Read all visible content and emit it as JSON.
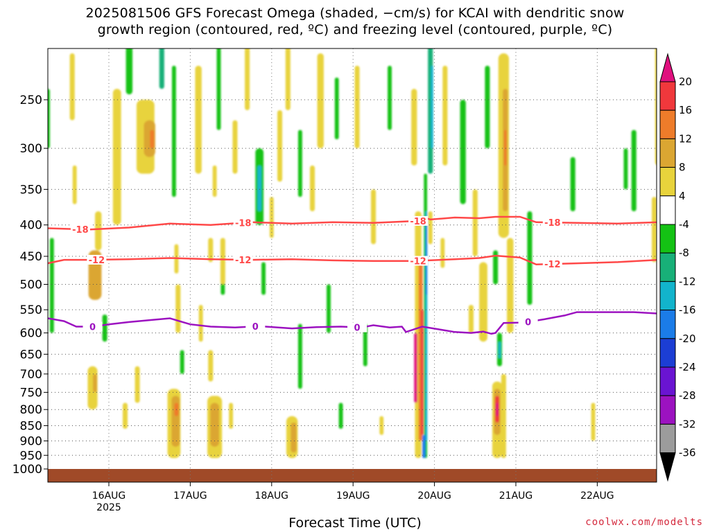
{
  "title_line1": "2025081506 GFS Forecast Omega (shaded, −cm/s) for KCAI with dendritic snow",
  "title_line2": "growth region (contoured, red, ºC) and freezing level (contoured, purple, ºC)",
  "credit": "coolwx.com/modelts",
  "chart_data": {
    "type": "heatmap",
    "title": "2025081506 GFS Forecast Omega (shaded, −cm/s) for KCAI with dendritic snow growth region (contoured, red, ºC) and freezing level (contoured, purple, ºC)",
    "xlabel": "Forecast Time (UTC)",
    "ylabel": "",
    "x_ticks": [
      "16AUG",
      "17AUG",
      "18AUG",
      "19AUG",
      "20AUG",
      "21AUG",
      "22AUG"
    ],
    "x_tick_year": "2025",
    "xlim": [
      "2025-08-15 06Z",
      "2025-08-22 18Z"
    ],
    "y_ticks": [
      250,
      300,
      350,
      400,
      450,
      500,
      550,
      600,
      650,
      700,
      750,
      800,
      850,
      900,
      950,
      1000
    ],
    "ylim": [
      1050,
      200
    ],
    "y_scale": "log-pressure",
    "grid": true,
    "colorbar": {
      "ticks": [
        20,
        16,
        12,
        8,
        4,
        -4,
        -8,
        -12,
        -16,
        -20,
        -24,
        -28,
        -32,
        -36
      ],
      "bins": [
        {
          "range": [
            20,
            null
          ],
          "color": "#e0107e"
        },
        {
          "range": [
            16,
            20
          ],
          "color": "#f0383c"
        },
        {
          "range": [
            12,
            16
          ],
          "color": "#ee7c2a"
        },
        {
          "range": [
            8,
            12
          ],
          "color": "#dba632"
        },
        {
          "range": [
            4,
            8
          ],
          "color": "#e8d33c"
        },
        {
          "range": [
            -4,
            4
          ],
          "color": "#ffffff"
        },
        {
          "range": [
            -8,
            -4
          ],
          "color": "#14c214"
        },
        {
          "range": [
            -12,
            -8
          ],
          "color": "#18b078"
        },
        {
          "range": [
            -16,
            -12
          ],
          "color": "#12b4cc"
        },
        {
          "range": [
            -20,
            -16
          ],
          "color": "#1b7ce8"
        },
        {
          "range": [
            -24,
            -20
          ],
          "color": "#1c3ed4"
        },
        {
          "range": [
            -28,
            -24
          ],
          "color": "#6a14d2"
        },
        {
          "range": [
            -32,
            -28
          ],
          "color": "#9c12c0"
        },
        {
          "range": [
            -36,
            -32
          ],
          "color": "#9c9c9c"
        },
        {
          "range": [
            null,
            -36
          ],
          "color": "#000000"
        }
      ]
    },
    "terrain_color": "#a04a28",
    "contours": [
      {
        "level": -18,
        "color": "#ff4848",
        "label_x_days": [
          0.4,
          2.4,
          4.55,
          6.2
        ],
        "points": [
          [
            0,
            405
          ],
          [
            0.5,
            407
          ],
          [
            1,
            404
          ],
          [
            1.5,
            398
          ],
          [
            2,
            400
          ],
          [
            2.5,
            396
          ],
          [
            3,
            398
          ],
          [
            3.5,
            396
          ],
          [
            4,
            397
          ],
          [
            4.55,
            394
          ],
          [
            4.6,
            388
          ],
          [
            4.7,
            392
          ],
          [
            5,
            389
          ],
          [
            5.3,
            390
          ],
          [
            5.5,
            388
          ],
          [
            5.8,
            388
          ],
          [
            6.0,
            396
          ],
          [
            6.5,
            397
          ],
          [
            7,
            398
          ],
          [
            7.5,
            396
          ],
          [
            7.8,
            396
          ]
        ]
      },
      {
        "level": -12,
        "color": "#ff4848",
        "label_x_days": [
          0.6,
          2.4,
          4.55,
          6.2
        ],
        "points": [
          [
            0,
            462
          ],
          [
            0.2,
            456
          ],
          [
            0.5,
            456
          ],
          [
            1,
            455
          ],
          [
            1.5,
            453
          ],
          [
            2,
            455
          ],
          [
            2.5,
            456
          ],
          [
            3,
            455
          ],
          [
            3.5,
            457
          ],
          [
            4,
            458
          ],
          [
            4.5,
            458
          ],
          [
            5,
            455
          ],
          [
            5.3,
            453
          ],
          [
            5.5,
            449
          ],
          [
            5.8,
            452
          ],
          [
            6.0,
            464
          ],
          [
            6.5,
            462
          ],
          [
            7,
            460
          ],
          [
            7.5,
            456
          ],
          [
            7.8,
            456
          ]
        ]
      },
      {
        "level": 0,
        "color": "#9c12c0",
        "label_x_days": [
          0.55,
          2.55,
          3.8,
          5.9
        ],
        "points": [
          [
            0,
            568
          ],
          [
            0.2,
            574
          ],
          [
            0.35,
            586
          ],
          [
            0.55,
            586
          ],
          [
            0.75,
            581
          ],
          [
            1,
            576
          ],
          [
            1.3,
            571
          ],
          [
            1.5,
            568
          ],
          [
            1.75,
            581
          ],
          [
            2,
            586
          ],
          [
            2.3,
            588
          ],
          [
            2.6,
            585
          ],
          [
            3,
            590
          ],
          [
            3.3,
            587
          ],
          [
            3.6,
            586
          ],
          [
            3.85,
            588
          ],
          [
            4.0,
            583
          ],
          [
            4.2,
            588
          ],
          [
            4.35,
            586
          ],
          [
            4.4,
            598
          ],
          [
            4.6,
            586
          ],
          [
            4.8,
            592
          ],
          [
            5,
            598
          ],
          [
            5.2,
            600
          ],
          [
            5.35,
            597
          ],
          [
            5.45,
            602
          ],
          [
            5.5,
            600
          ],
          [
            5.6,
            578
          ],
          [
            5.85,
            577
          ],
          [
            6.1,
            570
          ],
          [
            6.35,
            562
          ],
          [
            6.5,
            555
          ],
          [
            6.8,
            555
          ],
          [
            7.2,
            555
          ],
          [
            7.5,
            558
          ],
          [
            7.8,
            561
          ]
        ]
      }
    ],
    "omega_cells": [
      {
        "t": 0.0,
        "p1": 240,
        "p2": 300,
        "w": 0.05,
        "v": -6
      },
      {
        "t": 0.05,
        "p1": 420,
        "p2": 600,
        "w": 0.05,
        "v": -6
      },
      {
        "t": 0.3,
        "p1": 210,
        "p2": 270,
        "w": 0.06,
        "v": 6
      },
      {
        "t": 0.33,
        "p1": 320,
        "p2": 370,
        "w": 0.05,
        "v": 6
      },
      {
        "t": 0.58,
        "p1": 440,
        "p2": 530,
        "w": 0.16,
        "v": 10
      },
      {
        "t": 0.62,
        "p1": 380,
        "p2": 440,
        "w": 0.08,
        "v": 6
      },
      {
        "t": 0.7,
        "p1": 560,
        "p2": 620,
        "w": 0.06,
        "v": -6
      },
      {
        "t": 0.55,
        "p1": 680,
        "p2": 800,
        "w": 0.12,
        "v": 6
      },
      {
        "t": 0.58,
        "p1": 700,
        "p2": 750,
        "w": 0.05,
        "v": 10
      },
      {
        "t": 0.85,
        "p1": 240,
        "p2": 400,
        "w": 0.1,
        "v": 6
      },
      {
        "t": 0.95,
        "p1": 780,
        "p2": 860,
        "w": 0.06,
        "v": 6
      },
      {
        "t": 1.2,
        "p1": 250,
        "p2": 330,
        "w": 0.22,
        "v": 6
      },
      {
        "t": 1.25,
        "p1": 270,
        "p2": 310,
        "w": 0.14,
        "v": 10
      },
      {
        "t": 1.28,
        "p1": 280,
        "p2": 300,
        "w": 0.05,
        "v": 13
      },
      {
        "t": 1.0,
        "p1": 200,
        "p2": 245,
        "w": 0.08,
        "v": -6
      },
      {
        "t": 1.4,
        "p1": 200,
        "p2": 240,
        "w": 0.06,
        "v": -10
      },
      {
        "t": 1.1,
        "p1": 680,
        "p2": 780,
        "w": 0.06,
        "v": 6
      },
      {
        "t": 1.58,
        "p1": 430,
        "p2": 480,
        "w": 0.05,
        "v": 6
      },
      {
        "t": 1.6,
        "p1": 500,
        "p2": 600,
        "w": 0.06,
        "v": 6
      },
      {
        "t": 1.55,
        "p1": 740,
        "p2": 960,
        "w": 0.16,
        "v": 6
      },
      {
        "t": 1.57,
        "p1": 760,
        "p2": 920,
        "w": 0.1,
        "v": 10
      },
      {
        "t": 1.58,
        "p1": 780,
        "p2": 820,
        "w": 0.05,
        "v": 14
      },
      {
        "t": 1.65,
        "p1": 640,
        "p2": 700,
        "w": 0.05,
        "v": -6
      },
      {
        "t": 1.55,
        "p1": 220,
        "p2": 360,
        "w": 0.05,
        "v": -6
      },
      {
        "t": 1.85,
        "p1": 220,
        "p2": 330,
        "w": 0.08,
        "v": 6
      },
      {
        "t": 2.05,
        "p1": 320,
        "p2": 360,
        "w": 0.05,
        "v": 6
      },
      {
        "t": 2.0,
        "p1": 420,
        "p2": 460,
        "w": 0.06,
        "v": 6
      },
      {
        "t": 2.1,
        "p1": 200,
        "p2": 280,
        "w": 0.05,
        "v": -6
      },
      {
        "t": 2.3,
        "p1": 270,
        "p2": 330,
        "w": 0.06,
        "v": 6
      },
      {
        "t": 2.0,
        "p1": 640,
        "p2": 720,
        "w": 0.06,
        "v": 6
      },
      {
        "t": 1.88,
        "p1": 540,
        "p2": 620,
        "w": 0.05,
        "v": 6
      },
      {
        "t": 2.05,
        "p1": 760,
        "p2": 960,
        "w": 0.18,
        "v": 6
      },
      {
        "t": 2.05,
        "p1": 780,
        "p2": 920,
        "w": 0.11,
        "v": 10
      },
      {
        "t": 2.25,
        "p1": 780,
        "p2": 860,
        "w": 0.05,
        "v": 6
      },
      {
        "t": 2.15,
        "p1": 480,
        "p2": 520,
        "w": 0.05,
        "v": -6
      },
      {
        "t": 2.6,
        "p1": 300,
        "p2": 400,
        "w": 0.1,
        "v": -8
      },
      {
        "t": 2.6,
        "p1": 320,
        "p2": 380,
        "w": 0.05,
        "v": -13
      },
      {
        "t": 2.45,
        "p1": 200,
        "p2": 260,
        "w": 0.06,
        "v": 6
      },
      {
        "t": 2.15,
        "p1": 420,
        "p2": 500,
        "w": 0.06,
        "v": 6
      },
      {
        "t": 2.75,
        "p1": 360,
        "p2": 420,
        "w": 0.05,
        "v": 6
      },
      {
        "t": 2.85,
        "p1": 260,
        "p2": 340,
        "w": 0.06,
        "v": 6
      },
      {
        "t": 2.65,
        "p1": 460,
        "p2": 520,
        "w": 0.05,
        "v": -6
      },
      {
        "t": 2.95,
        "p1": 200,
        "p2": 260,
        "w": 0.06,
        "v": 6
      },
      {
        "t": 3.1,
        "p1": 280,
        "p2": 360,
        "w": 0.05,
        "v": -6
      },
      {
        "t": 3.25,
        "p1": 320,
        "p2": 380,
        "w": 0.06,
        "v": 6
      },
      {
        "t": 3.35,
        "p1": 210,
        "p2": 300,
        "w": 0.08,
        "v": 6
      },
      {
        "t": 3.55,
        "p1": 230,
        "p2": 290,
        "w": 0.05,
        "v": -6
      },
      {
        "t": 3.0,
        "p1": 820,
        "p2": 960,
        "w": 0.14,
        "v": 6
      },
      {
        "t": 3.02,
        "p1": 840,
        "p2": 940,
        "w": 0.07,
        "v": 10
      },
      {
        "t": 3.1,
        "p1": 580,
        "p2": 740,
        "w": 0.05,
        "v": -6
      },
      {
        "t": 3.45,
        "p1": 500,
        "p2": 600,
        "w": 0.05,
        "v": -6
      },
      {
        "t": 3.6,
        "p1": 780,
        "p2": 860,
        "w": 0.05,
        "v": -6
      },
      {
        "t": 3.8,
        "p1": 220,
        "p2": 300,
        "w": 0.06,
        "v": 6
      },
      {
        "t": 4.0,
        "p1": 350,
        "p2": 430,
        "w": 0.06,
        "v": 6
      },
      {
        "t": 4.2,
        "p1": 220,
        "p2": 280,
        "w": 0.05,
        "v": -6
      },
      {
        "t": 3.9,
        "p1": 580,
        "p2": 680,
        "w": 0.05,
        "v": -6
      },
      {
        "t": 4.1,
        "p1": 820,
        "p2": 880,
        "w": 0.05,
        "v": 6
      },
      {
        "t": 4.5,
        "p1": 240,
        "p2": 320,
        "w": 0.07,
        "v": 6
      },
      {
        "t": 4.55,
        "p1": 380,
        "p2": 960,
        "w": 0.08,
        "v": 6
      },
      {
        "t": 4.58,
        "p1": 450,
        "p2": 900,
        "w": 0.05,
        "v": 13
      },
      {
        "t": 4.6,
        "p1": 550,
        "p2": 880,
        "w": 0.03,
        "v": 18
      },
      {
        "t": 4.52,
        "p1": 600,
        "p2": 780,
        "w": 0.04,
        "v": 22
      },
      {
        "t": 4.64,
        "p1": 330,
        "p2": 960,
        "w": 0.04,
        "v": -8
      },
      {
        "t": 4.65,
        "p1": 380,
        "p2": 900,
        "w": 0.025,
        "v": -14
      },
      {
        "t": 4.65,
        "p1": 400,
        "p2": 520,
        "w": 0.02,
        "v": -18
      },
      {
        "t": 4.7,
        "p1": 200,
        "p2": 330,
        "w": 0.06,
        "v": -10
      },
      {
        "t": 4.72,
        "p1": 220,
        "p2": 300,
        "w": 0.03,
        "v": -14
      },
      {
        "t": 4.62,
        "p1": 880,
        "p2": 960,
        "w": 0.04,
        "v": -18
      },
      {
        "t": 4.7,
        "p1": 380,
        "p2": 430,
        "w": 0.05,
        "v": 6
      },
      {
        "t": 4.85,
        "p1": 420,
        "p2": 470,
        "w": 0.05,
        "v": 6
      },
      {
        "t": 4.88,
        "p1": 220,
        "p2": 320,
        "w": 0.06,
        "v": 6
      },
      {
        "t": 5.1,
        "p1": 250,
        "p2": 370,
        "w": 0.07,
        "v": -6
      },
      {
        "t": 5.25,
        "p1": 350,
        "p2": 450,
        "w": 0.06,
        "v": 6
      },
      {
        "t": 5.4,
        "p1": 220,
        "p2": 300,
        "w": 0.06,
        "v": -6
      },
      {
        "t": 5.2,
        "p1": 540,
        "p2": 600,
        "w": 0.06,
        "v": 6
      },
      {
        "t": 5.35,
        "p1": 460,
        "p2": 620,
        "w": 0.1,
        "v": 6
      },
      {
        "t": 5.6,
        "p1": 210,
        "p2": 420,
        "w": 0.13,
        "v": 6
      },
      {
        "t": 5.62,
        "p1": 240,
        "p2": 380,
        "w": 0.06,
        "v": 10
      },
      {
        "t": 5.62,
        "p1": 280,
        "p2": 320,
        "w": 0.03,
        "v": 14
      },
      {
        "t": 5.68,
        "p1": 420,
        "p2": 600,
        "w": 0.08,
        "v": 6
      },
      {
        "t": 5.5,
        "p1": 440,
        "p2": 500,
        "w": 0.06,
        "v": -6
      },
      {
        "t": 5.55,
        "p1": 600,
        "p2": 680,
        "w": 0.06,
        "v": -8
      },
      {
        "t": 5.55,
        "p1": 620,
        "p2": 660,
        "w": 0.03,
        "v": -14
      },
      {
        "t": 5.52,
        "p1": 720,
        "p2": 960,
        "w": 0.12,
        "v": 6
      },
      {
        "t": 5.52,
        "p1": 740,
        "p2": 880,
        "w": 0.08,
        "v": 10
      },
      {
        "t": 5.52,
        "p1": 760,
        "p2": 840,
        "w": 0.05,
        "v": 18
      },
      {
        "t": 5.52,
        "p1": 780,
        "p2": 820,
        "w": 0.03,
        "v": 22
      },
      {
        "t": 5.6,
        "p1": 700,
        "p2": 960,
        "w": 0.06,
        "v": 6
      },
      {
        "t": 5.92,
        "p1": 380,
        "p2": 540,
        "w": 0.06,
        "v": -6
      },
      {
        "t": 6.45,
        "p1": 310,
        "p2": 380,
        "w": 0.06,
        "v": -6
      },
      {
        "t": 6.7,
        "p1": 780,
        "p2": 900,
        "w": 0.05,
        "v": 6
      },
      {
        "t": 7.1,
        "p1": 300,
        "p2": 350,
        "w": 0.05,
        "v": -6
      },
      {
        "t": 7.2,
        "p1": 280,
        "p2": 380,
        "w": 0.06,
        "v": -6
      },
      {
        "t": 7.5,
        "p1": 200,
        "p2": 320,
        "w": 0.08,
        "v": 6
      },
      {
        "t": 7.55,
        "p1": 240,
        "p2": 280,
        "w": 0.04,
        "v": 10
      },
      {
        "t": 7.45,
        "p1": 360,
        "p2": 460,
        "w": 0.06,
        "v": 6
      },
      {
        "t": 7.75,
        "p1": 200,
        "p2": 260,
        "w": 0.05,
        "v": 6
      }
    ]
  }
}
